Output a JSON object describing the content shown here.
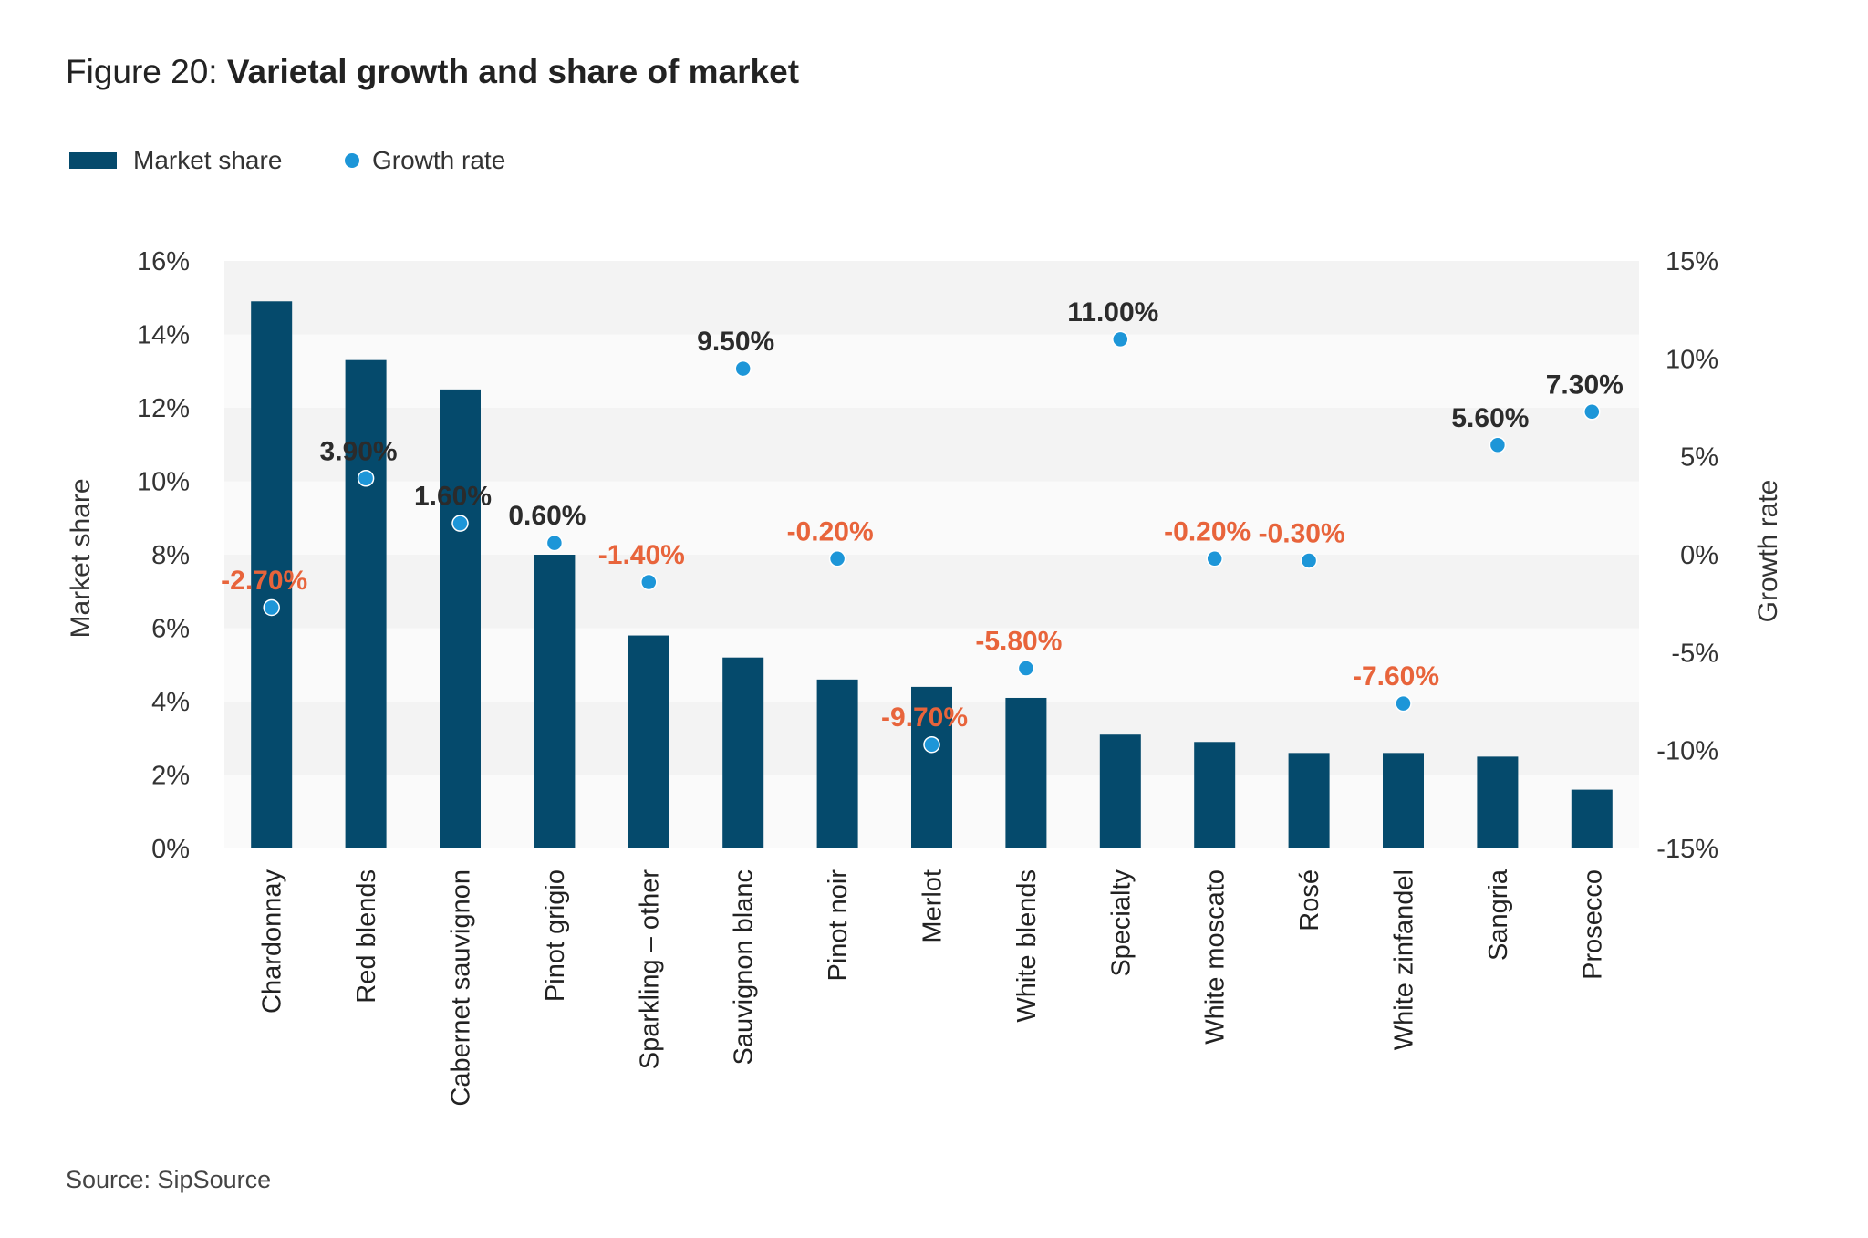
{
  "header": {
    "title_prefix": "Figure 20: ",
    "title_bold": "Varietal growth and share of market"
  },
  "legend": {
    "bar_label": "Market share",
    "dot_label": "Growth rate"
  },
  "source": "Source: SipSource",
  "colors": {
    "bar": "#054a6c",
    "dot": "#1d96d8",
    "positive_label": "#2b2b2b",
    "negative_label": "#e8643b",
    "band_dark": "#f3f3f3",
    "band_light": "#fafafa"
  },
  "chart_data": {
    "type": "bar",
    "title": "Varietal growth and share of market",
    "ylabel": "Market share",
    "y2label": "Growth rate",
    "ylim": [
      0,
      16
    ],
    "y2lim": [
      -15,
      15
    ],
    "y_ticks": [
      "0%",
      "2%",
      "4%",
      "6%",
      "8%",
      "10%",
      "12%",
      "14%",
      "16%"
    ],
    "y2_ticks": [
      "-15%",
      "-10%",
      "-5%",
      "0%",
      "5%",
      "10%",
      "15%"
    ],
    "legend_position": "top-left",
    "grid": "horizontal bands",
    "categories": [
      "Chardonnay",
      "Red blends",
      "Cabernet sauvignon",
      "Pinot grigio",
      "Sparkling – other",
      "Sauvignon blanc",
      "Pinot noir",
      "Merlot",
      "White blends",
      "Specialty",
      "White moscato",
      "Rosé",
      "White zinfandel",
      "Sangria",
      "Prosecco"
    ],
    "series": [
      {
        "name": "Market share",
        "type": "bar",
        "axis": "left",
        "values": [
          14.9,
          13.3,
          12.5,
          8.0,
          5.8,
          5.2,
          4.6,
          4.4,
          4.1,
          3.1,
          2.9,
          2.6,
          2.6,
          2.5,
          1.6
        ]
      },
      {
        "name": "Growth rate",
        "type": "scatter",
        "axis": "right",
        "values": [
          -2.7,
          3.9,
          1.6,
          0.6,
          -1.4,
          9.5,
          -0.2,
          -9.7,
          -5.8,
          11.0,
          -0.2,
          -0.3,
          -7.6,
          5.6,
          7.3
        ],
        "labels": [
          "-2.70%",
          "3.90%",
          "1.60%",
          "0.60%",
          "-1.40%",
          "9.50%",
          "-0.20%",
          "-9.70%",
          "-5.80%",
          "11.00%",
          "-0.20%",
          "-0.30%",
          "-7.60%",
          "5.60%",
          "7.30%"
        ]
      }
    ]
  }
}
